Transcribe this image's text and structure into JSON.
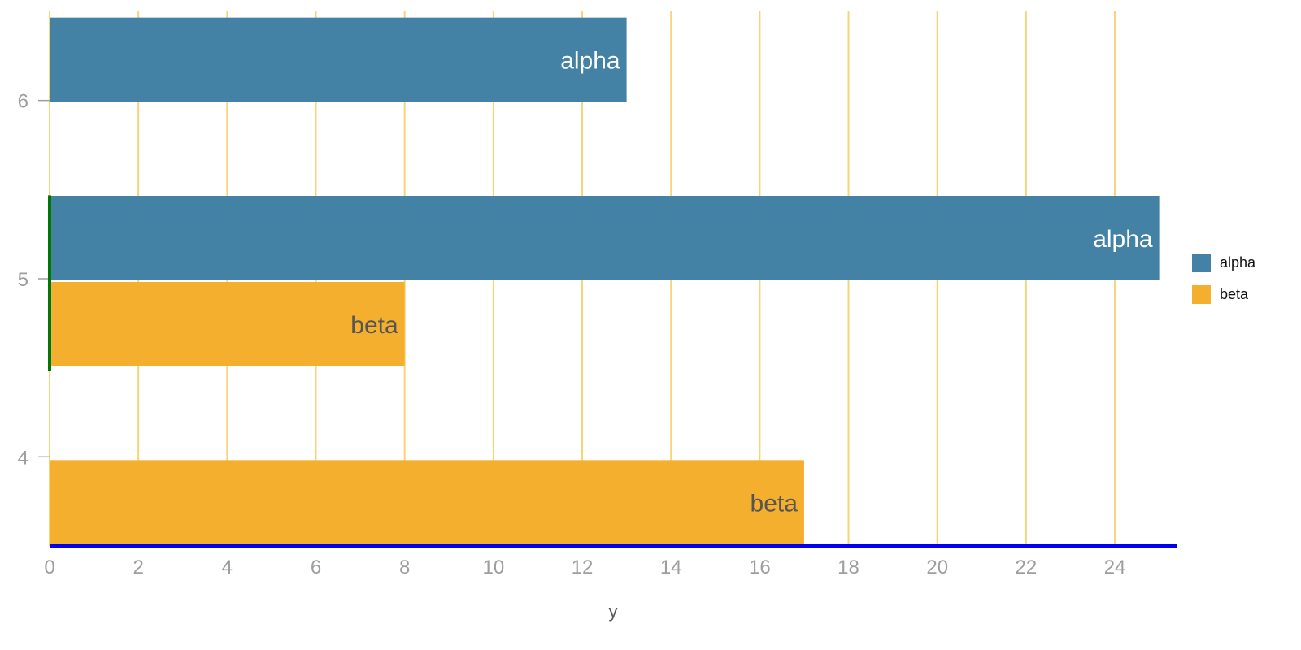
{
  "chart_data": {
    "type": "bar",
    "orientation": "horizontal",
    "title": "",
    "xlabel": "y",
    "ylabel": "",
    "xlim": [
      0,
      25.3
    ],
    "ylim": [
      3.5,
      6.5
    ],
    "x_ticks": [
      0,
      2,
      4,
      6,
      8,
      10,
      12,
      14,
      16,
      18,
      20,
      22,
      24
    ],
    "y_ticks": [
      4,
      5,
      6
    ],
    "grid": "vertical",
    "legend_position": "right",
    "series": [
      {
        "name": "alpha",
        "color": "#4382a4",
        "label_color": "#ffffff",
        "points": [
          {
            "category": 5,
            "value": 25,
            "label": "alpha"
          },
          {
            "category": 6,
            "value": 13,
            "label": "alpha"
          }
        ]
      },
      {
        "name": "beta",
        "color": "#f5af2f",
        "label_color": "#555555",
        "points": [
          {
            "category": 4,
            "value": 17,
            "label": "beta"
          },
          {
            "category": 5,
            "value": 8,
            "label": "beta"
          }
        ]
      }
    ],
    "colors": {
      "grid": "#f9d37a",
      "x_axis_line": "#0000ee",
      "y_axis_line": "#007700",
      "tick_text": "#9e9e9e"
    }
  }
}
